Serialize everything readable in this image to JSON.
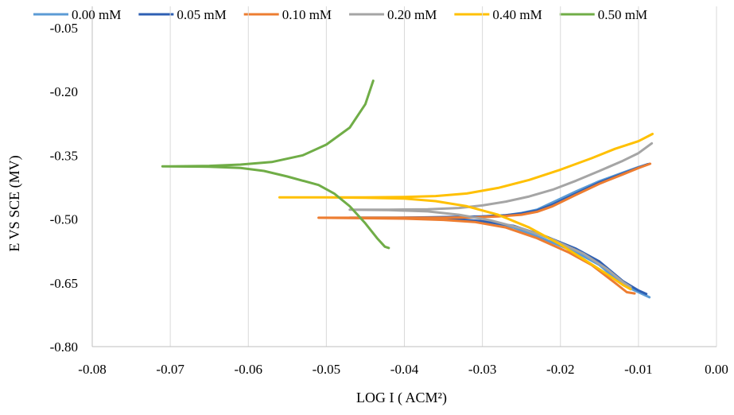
{
  "chart_data": {
    "type": "line",
    "title": "",
    "xlabel": "LOG I ( ACM²)",
    "ylabel": "E VS SCE (MV)",
    "xlim": [
      -0.08,
      0.0
    ],
    "ylim": [
      -0.8,
      0.0
    ],
    "x_ticks": [
      -0.08,
      -0.07,
      -0.06,
      -0.05,
      -0.04,
      -0.03,
      -0.02,
      -0.01,
      0.0
    ],
    "x_tick_labels": [
      "-0.08",
      "-0.07",
      "-0.06",
      "-0.05",
      "-0.04",
      "-0.03",
      "-0.02",
      "-0.01",
      "0.00"
    ],
    "y_ticks": [
      -0.05,
      -0.2,
      -0.35,
      -0.5,
      -0.65,
      -0.8
    ],
    "y_tick_labels": [
      "-0.05",
      "-0.20",
      "-0.35",
      "-0.50",
      "-0.65",
      "-0.80"
    ],
    "grid": true,
    "grid_axis": "vertical",
    "legend_position": "top",
    "series": [
      {
        "name": "0.00 mM",
        "color": "#5b9bd5",
        "points": [
          [
            -0.0086,
            -0.37
          ],
          [
            -0.01,
            -0.378
          ],
          [
            -0.012,
            -0.391
          ],
          [
            -0.015,
            -0.411
          ],
          [
            -0.018,
            -0.435
          ],
          [
            -0.021,
            -0.461
          ],
          [
            -0.023,
            -0.478
          ],
          [
            -0.025,
            -0.486
          ],
          [
            -0.027,
            -0.491
          ],
          [
            -0.029,
            -0.493
          ],
          [
            -0.031,
            -0.495
          ],
          [
            -0.034,
            -0.496
          ],
          [
            -0.038,
            -0.497
          ],
          [
            -0.042,
            -0.497
          ],
          [
            -0.046,
            -0.497
          ],
          [
            -0.042,
            -0.498
          ],
          [
            -0.038,
            -0.499
          ],
          [
            -0.034,
            -0.502
          ],
          [
            -0.03,
            -0.507
          ],
          [
            -0.026,
            -0.52
          ],
          [
            -0.022,
            -0.548
          ],
          [
            -0.018,
            -0.578
          ],
          [
            -0.015,
            -0.608
          ],
          [
            -0.012,
            -0.655
          ],
          [
            -0.01,
            -0.672
          ],
          [
            -0.0086,
            -0.684
          ]
        ]
      },
      {
        "name": "0.05 mM",
        "color": "#2e5fb3",
        "points": [
          [
            -0.0088,
            -0.371
          ],
          [
            -0.01,
            -0.379
          ],
          [
            -0.012,
            -0.393
          ],
          [
            -0.015,
            -0.414
          ],
          [
            -0.018,
            -0.44
          ],
          [
            -0.021,
            -0.466
          ],
          [
            -0.023,
            -0.48
          ],
          [
            -0.025,
            -0.487
          ],
          [
            -0.027,
            -0.491
          ],
          [
            -0.03,
            -0.494
          ],
          [
            -0.033,
            -0.495
          ],
          [
            -0.037,
            -0.496
          ],
          [
            -0.041,
            -0.497
          ],
          [
            -0.047,
            -0.497
          ],
          [
            -0.041,
            -0.498
          ],
          [
            -0.037,
            -0.499
          ],
          [
            -0.033,
            -0.501
          ],
          [
            -0.03,
            -0.505
          ],
          [
            -0.026,
            -0.516
          ],
          [
            -0.022,
            -0.54
          ],
          [
            -0.018,
            -0.57
          ],
          [
            -0.015,
            -0.6
          ],
          [
            -0.012,
            -0.646
          ],
          [
            -0.01,
            -0.668
          ],
          [
            -0.009,
            -0.676
          ]
        ]
      },
      {
        "name": "0.10 mM",
        "color": "#ed7d31",
        "points": [
          [
            -0.0085,
            -0.37
          ],
          [
            -0.01,
            -0.38
          ],
          [
            -0.012,
            -0.395
          ],
          [
            -0.015,
            -0.417
          ],
          [
            -0.018,
            -0.443
          ],
          [
            -0.021,
            -0.47
          ],
          [
            -0.023,
            -0.483
          ],
          [
            -0.025,
            -0.49
          ],
          [
            -0.028,
            -0.494
          ],
          [
            -0.031,
            -0.496
          ],
          [
            -0.035,
            -0.497
          ],
          [
            -0.04,
            -0.497
          ],
          [
            -0.046,
            -0.497
          ],
          [
            -0.051,
            -0.497
          ],
          [
            -0.046,
            -0.498
          ],
          [
            -0.04,
            -0.499
          ],
          [
            -0.035,
            -0.502
          ],
          [
            -0.031,
            -0.507
          ],
          [
            -0.027,
            -0.52
          ],
          [
            -0.023,
            -0.545
          ],
          [
            -0.019,
            -0.578
          ],
          [
            -0.016,
            -0.608
          ],
          [
            -0.013,
            -0.65
          ],
          [
            -0.0115,
            -0.672
          ],
          [
            -0.0105,
            -0.675
          ]
        ]
      },
      {
        "name": "0.20 mM",
        "color": "#a5a5a5",
        "points": [
          [
            -0.0083,
            -0.322
          ],
          [
            -0.01,
            -0.345
          ],
          [
            -0.012,
            -0.363
          ],
          [
            -0.015,
            -0.387
          ],
          [
            -0.018,
            -0.41
          ],
          [
            -0.021,
            -0.431
          ],
          [
            -0.024,
            -0.447
          ],
          [
            -0.027,
            -0.459
          ],
          [
            -0.03,
            -0.468
          ],
          [
            -0.033,
            -0.474
          ],
          [
            -0.037,
            -0.477
          ],
          [
            -0.042,
            -0.478
          ],
          [
            -0.047,
            -0.478
          ],
          [
            -0.042,
            -0.479
          ],
          [
            -0.037,
            -0.482
          ],
          [
            -0.033,
            -0.49
          ],
          [
            -0.029,
            -0.503
          ],
          [
            -0.025,
            -0.522
          ],
          [
            -0.021,
            -0.548
          ],
          [
            -0.017,
            -0.582
          ],
          [
            -0.014,
            -0.618
          ],
          [
            -0.012,
            -0.648
          ],
          [
            -0.011,
            -0.66
          ]
        ]
      },
      {
        "name": "0.40 mM",
        "color": "#ffc000",
        "points": [
          [
            -0.0082,
            -0.3
          ],
          [
            -0.01,
            -0.317
          ],
          [
            -0.013,
            -0.335
          ],
          [
            -0.016,
            -0.357
          ],
          [
            -0.02,
            -0.384
          ],
          [
            -0.024,
            -0.408
          ],
          [
            -0.028,
            -0.427
          ],
          [
            -0.032,
            -0.44
          ],
          [
            -0.036,
            -0.446
          ],
          [
            -0.04,
            -0.448
          ],
          [
            -0.045,
            -0.449
          ],
          [
            -0.05,
            -0.449
          ],
          [
            -0.056,
            -0.449
          ],
          [
            -0.05,
            -0.449
          ],
          [
            -0.045,
            -0.45
          ],
          [
            -0.04,
            -0.452
          ],
          [
            -0.036,
            -0.458
          ],
          [
            -0.032,
            -0.47
          ],
          [
            -0.028,
            -0.49
          ],
          [
            -0.024,
            -0.52
          ],
          [
            -0.02,
            -0.56
          ],
          [
            -0.017,
            -0.595
          ],
          [
            -0.014,
            -0.63
          ],
          [
            -0.012,
            -0.655
          ],
          [
            -0.011,
            -0.665
          ]
        ]
      },
      {
        "name": "0.50 mM",
        "color": "#70ad47",
        "points": [
          [
            -0.044,
            -0.175
          ],
          [
            -0.045,
            -0.23
          ],
          [
            -0.047,
            -0.285
          ],
          [
            -0.05,
            -0.325
          ],
          [
            -0.053,
            -0.35
          ],
          [
            -0.057,
            -0.366
          ],
          [
            -0.061,
            -0.372
          ],
          [
            -0.065,
            -0.375
          ],
          [
            -0.07,
            -0.376
          ],
          [
            -0.071,
            -0.376
          ],
          [
            -0.065,
            -0.377
          ],
          [
            -0.061,
            -0.38
          ],
          [
            -0.058,
            -0.387
          ],
          [
            -0.055,
            -0.4
          ],
          [
            -0.051,
            -0.42
          ],
          [
            -0.049,
            -0.44
          ],
          [
            -0.047,
            -0.47
          ],
          [
            -0.045,
            -0.51
          ],
          [
            -0.0435,
            -0.545
          ],
          [
            -0.0425,
            -0.565
          ],
          [
            -0.042,
            -0.568
          ]
        ]
      }
    ]
  }
}
